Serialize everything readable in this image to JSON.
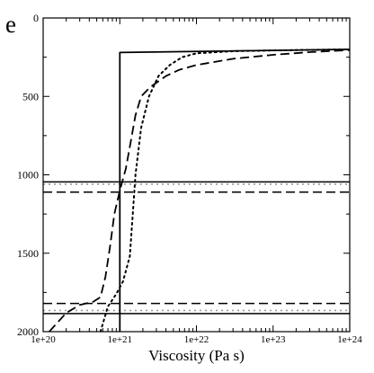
{
  "chart_data": {
    "type": "line",
    "panel_label": "e",
    "xlabel": "Viscosity (Pa s)",
    "ylabel": "",
    "xscale": "log",
    "xlim": [
      1e+20,
      1e+24
    ],
    "ylim": [
      2000,
      0
    ],
    "y_inverted": true,
    "grid": false,
    "x_ticks": [
      {
        "value": 1e+20,
        "label": "1e+20"
      },
      {
        "value": 1e+21,
        "label": "1e+21"
      },
      {
        "value": 1e+22,
        "label": "1e+22"
      },
      {
        "value": 1e+23,
        "label": "1e+23"
      },
      {
        "value": 1e+24,
        "label": "1e+24"
      }
    ],
    "y_ticks": [
      {
        "value": 0,
        "label": "0"
      },
      {
        "value": 500,
        "label": "500"
      },
      {
        "value": 1000,
        "label": "1000"
      },
      {
        "value": 1500,
        "label": "1500"
      },
      {
        "value": 2000,
        "label": "2000"
      }
    ],
    "series": [
      {
        "style": "solid",
        "color": "#000000",
        "points": [
          [
            1e+21,
            2000
          ],
          [
            1e+21,
            220
          ],
          [
            1e+24,
            200
          ]
        ]
      },
      {
        "style": "dashed",
        "color": "#000000",
        "points": [
          [
            1.2e+20,
            2000
          ],
          [
            2e+20,
            1880
          ],
          [
            3e+20,
            1830
          ],
          [
            4.5e+20,
            1810
          ],
          [
            5.6e+20,
            1780
          ],
          [
            6.5e+20,
            1650
          ],
          [
            7.5e+20,
            1450
          ],
          [
            8.5e+20,
            1250
          ],
          [
            1e+21,
            1100
          ],
          [
            1.2e+21,
            960
          ],
          [
            1.4e+21,
            780
          ],
          [
            1.6e+21,
            620
          ],
          [
            1.9e+21,
            500
          ],
          [
            2.5e+21,
            440
          ],
          [
            4e+21,
            370
          ],
          [
            6e+21,
            330
          ],
          [
            1e+22,
            300
          ],
          [
            3e+22,
            260
          ],
          [
            1e+23,
            235
          ],
          [
            3e+23,
            218
          ],
          [
            1e+24,
            205
          ]
        ]
      },
      {
        "style": "dotted",
        "color": "#000000",
        "points": [
          [
            5.6e+20,
            2000
          ],
          [
            7e+20,
            1840
          ],
          [
            9e+20,
            1760
          ],
          [
            1.1e+21,
            1680
          ],
          [
            1.35e+21,
            1520
          ],
          [
            1.6e+21,
            1000
          ],
          [
            1.9e+21,
            700
          ],
          [
            2.4e+21,
            500
          ],
          [
            3.2e+21,
            370
          ],
          [
            4.5e+21,
            300
          ],
          [
            6.5e+21,
            250
          ],
          [
            1e+22,
            225
          ],
          [
            3e+22,
            212
          ],
          [
            1e+23,
            207
          ],
          [
            1e+24,
            200
          ]
        ]
      }
    ],
    "reference_lines": [
      {
        "style": "solid",
        "color": "#000000",
        "y": 1045
      },
      {
        "style": "dotted",
        "color": "#999999",
        "y": 1060
      },
      {
        "style": "dashed",
        "color": "#000000",
        "y": 1110
      },
      {
        "style": "dashed",
        "color": "#000000",
        "y": 1820
      },
      {
        "style": "dotted",
        "color": "#999999",
        "y": 1865
      },
      {
        "style": "solid",
        "color": "#000000",
        "y": 1885
      }
    ]
  }
}
